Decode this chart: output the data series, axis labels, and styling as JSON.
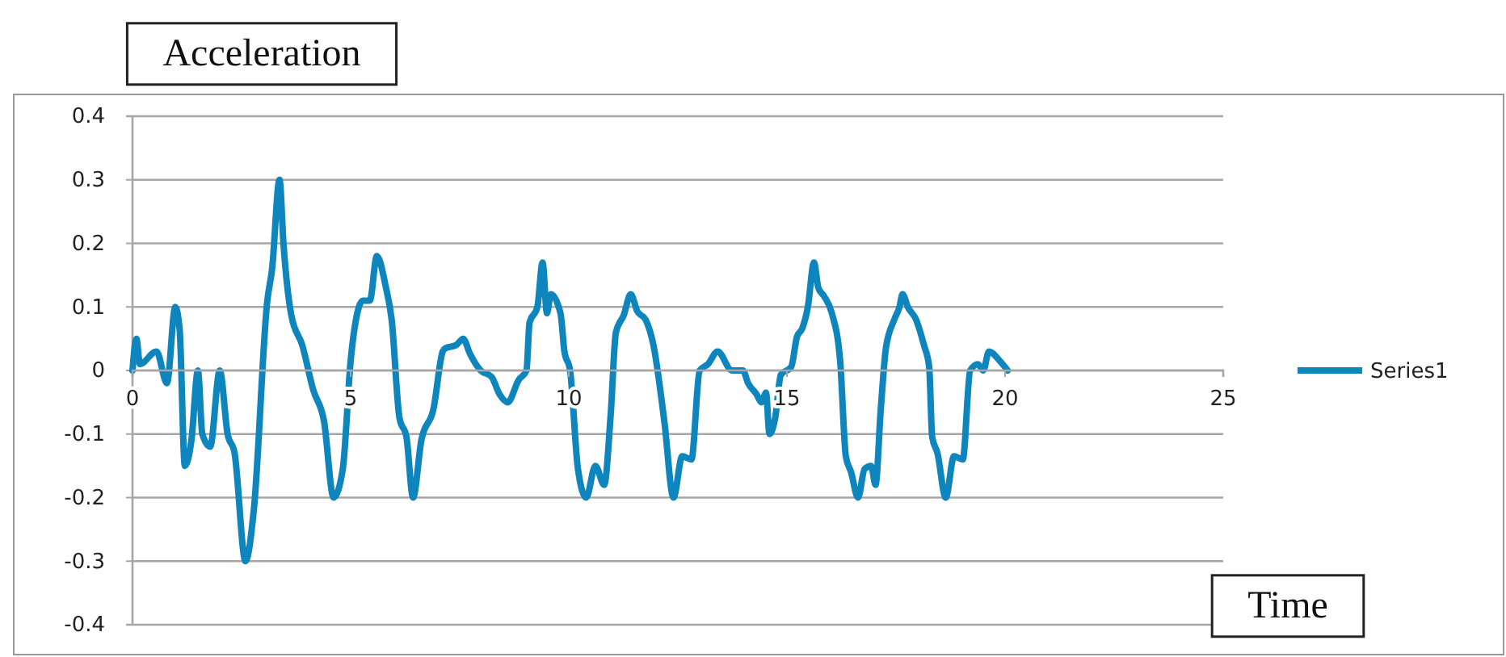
{
  "chart_data": {
    "type": "line",
    "xlabel": "Time",
    "ylabel": "Acceleration",
    "xlim": [
      0,
      25
    ],
    "xticks": [
      0,
      5,
      10,
      15,
      20,
      25
    ],
    "ylim": [
      -0.4,
      0.4
    ],
    "yticks": [
      -0.4,
      -0.3,
      -0.2,
      -0.1,
      0,
      0.1,
      0.2,
      0.3,
      0.4
    ],
    "grid": "y",
    "legend": "right",
    "line_style": "solid",
    "marker": "none",
    "series": [
      {
        "name": "Series1",
        "color": "#0e86bd",
        "x": [
          0,
          0.09,
          0.17,
          0.55,
          0.79,
          0.98,
          1.08,
          1.2,
          1.35,
          1.5,
          1.6,
          1.78,
          2.0,
          2.18,
          2.34,
          2.59,
          2.78,
          3.09,
          3.2,
          3.37,
          3.46,
          3.64,
          3.89,
          4.14,
          4.39,
          4.61,
          4.82,
          5.0,
          5.19,
          5.28,
          5.44,
          5.6,
          5.81,
          5.94,
          6.12,
          6.28,
          6.43,
          6.62,
          6.9,
          7.11,
          7.17,
          7.42,
          7.58,
          7.73,
          7.98,
          8.23,
          8.41,
          8.6,
          8.85,
          9.03,
          9.1,
          9.28,
          9.4,
          9.5,
          9.59,
          9.81,
          9.9,
          10.03,
          10.21,
          10.4,
          10.61,
          10.81,
          10.96,
          11.08,
          11.26,
          11.42,
          11.57,
          11.76,
          11.94,
          12.19,
          12.4,
          12.6,
          12.81,
          13.0,
          13.19,
          13.41,
          13.74,
          13.99,
          14.11,
          14.3,
          14.42,
          14.52,
          14.6,
          14.73,
          14.86,
          15.1,
          15.23,
          15.35,
          15.48,
          15.62,
          15.72,
          15.85,
          16.03,
          16.22,
          16.35,
          16.47,
          16.63,
          16.78,
          16.93,
          17.03,
          17.15,
          17.27,
          17.46,
          17.58,
          17.65,
          17.77,
          17.96,
          18.14,
          18.26,
          18.33,
          18.45,
          18.64,
          18.83,
          19.03,
          19.2,
          19.38,
          19.5,
          19.63,
          19.88,
          20.06
        ],
        "values": [
          0,
          0.05,
          0.01,
          0.03,
          -0.02,
          0.1,
          0.065,
          -0.15,
          -0.11,
          0,
          -0.1,
          -0.12,
          0,
          -0.1,
          -0.13,
          -0.3,
          -0.22,
          0.11,
          0.16,
          0.3,
          0.2,
          0.087,
          0.04,
          -0.03,
          -0.08,
          -0.2,
          -0.155,
          0.015,
          0.1,
          0.11,
          0.11,
          0.18,
          0.13,
          0.08,
          -0.075,
          -0.105,
          -0.2,
          -0.11,
          -0.06,
          0.03,
          0.035,
          0.04,
          0.05,
          0.027,
          0,
          -0.01,
          -0.037,
          -0.05,
          -0.015,
          0,
          0.075,
          0.1,
          0.17,
          0.09,
          0.12,
          0.09,
          0.03,
          0,
          -0.155,
          -0.2,
          -0.15,
          -0.18,
          -0.07,
          0.06,
          0.087,
          0.12,
          0.093,
          0.08,
          0.04,
          -0.08,
          -0.2,
          -0.135,
          -0.14,
          0,
          0.01,
          0.03,
          0,
          0,
          -0.02,
          -0.037,
          -0.05,
          -0.035,
          -0.1,
          -0.075,
          -0.007,
          0.006,
          0.053,
          0.066,
          0.1,
          0.17,
          0.13,
          0.117,
          0.09,
          0.015,
          -0.135,
          -0.16,
          -0.2,
          -0.155,
          -0.15,
          -0.18,
          -0.062,
          0.036,
          0.08,
          0.1,
          0.12,
          0.1,
          0.08,
          0.04,
          0.006,
          -0.105,
          -0.13,
          -0.2,
          -0.135,
          -0.14,
          0,
          0.01,
          0,
          0.03,
          0.015,
          0
        ]
      }
    ]
  }
}
